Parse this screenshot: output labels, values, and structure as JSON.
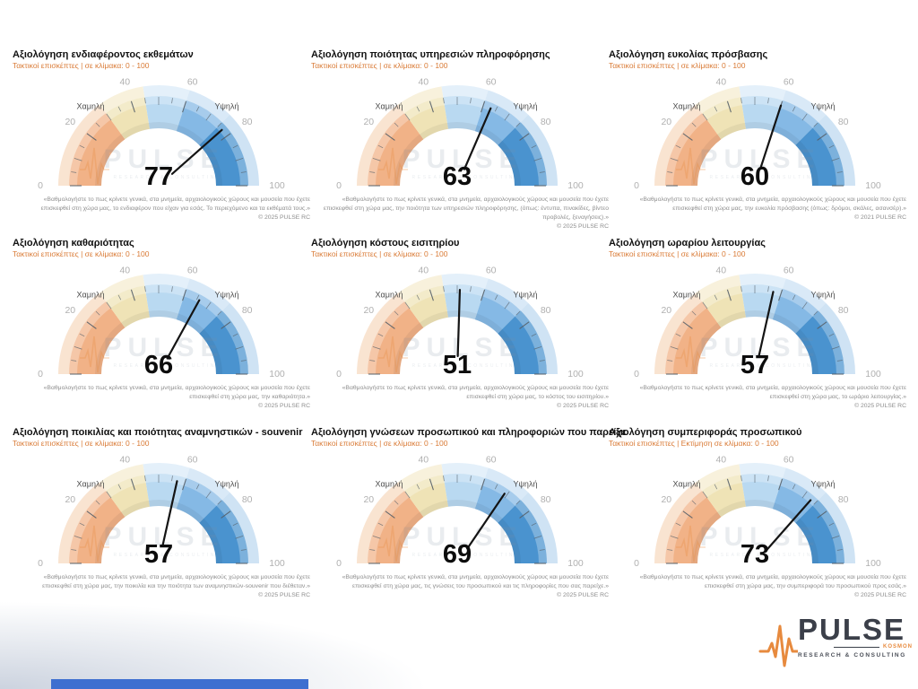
{
  "watermark": {
    "text": "PULSE",
    "subtext": "RESEARCH & CONSULTING"
  },
  "gauge_scale": {
    "min": 0,
    "max": 100,
    "ticks": [
      0,
      20,
      40,
      60,
      80,
      100
    ],
    "low_label": "Χαμηλή",
    "high_label": "Υψηλή",
    "bands": [
      {
        "from": 0,
        "to": 30,
        "color": "#f1b287",
        "halo": "#f9e4d1"
      },
      {
        "from": 30,
        "to": 45,
        "color": "#efe3b6",
        "halo": "#f8f1dc"
      },
      {
        "from": 45,
        "to": 60,
        "color": "#b9d9f1",
        "halo": "#e4f0fa"
      },
      {
        "from": 60,
        "to": 75,
        "color": "#85b9e5",
        "halo": "#d9e9f7"
      },
      {
        "from": 75,
        "to": 100,
        "color": "#4a93cf",
        "halo": "#cfe3f4"
      }
    ]
  },
  "gauges": [
    {
      "title": "Αξιολόγηση ενδιαφέροντος εκθεμάτων",
      "subtitle": "Τακτικοί επισκέπτες  |  σε κλίμακα:  0 - 100",
      "value": 77,
      "footnote": "«Βαθμολογήστε το πως κρίνετε γενικά, στα μνημεία, αρχαιολογικούς χώρους και μουσεία που έχετε επισκεφθεί στη χώρα μας, το ενδιαφέρον που είχαν για εσάς. Το περιεχόμενο και τα εκθέματά τους.»",
      "copyright": "©  2025  PULSE RC"
    },
    {
      "title": "Αξιολόγηση ποιότητας υπηρεσιών πληροφόρησης",
      "subtitle": "Τακτικοί επισκέπτες  |  σε κλίμακα:  0 - 100",
      "value": 63,
      "footnote": "«Βαθμολογήστε το πως κρίνετε γενικά, στα μνημεία, αρχαιολογικούς χώρους και μουσεία που έχετε επισκεφθεί στη χώρα μας, την ποιότητα των υπηρεσιών πληροφόρησης, (όπως: έντυπα, πινακίδες, βίντεο προβολές, ξεναγήσεις).»",
      "copyright": "©  2025  PULSE RC"
    },
    {
      "title": "Αξιολόγηση ευκολίας πρόσβασης",
      "subtitle": "Τακτικοί επισκέπτες  |  σε κλίμακα:  0 - 100",
      "value": 60,
      "footnote": "«Βαθμολογήστε το πως κρίνετε γενικά, στα μνημεία, αρχαιολογικούς χώρους και μουσεία που έχετε επισκεφθεί στη χώρα μας, την ευκολία πρόσβασης (όπως: δρόμοι, σκάλες, ασανσέρ).»",
      "copyright": "©  2021  PULSE RC"
    },
    {
      "title": "Αξιολόγηση καθαριότητας",
      "subtitle": "Τακτικοί επισκέπτες  |  σε κλίμακα:  0 - 100",
      "value": 66,
      "footnote": "«Βαθμολογήστε το πως κρίνετε γενικά, στα μνημεία, αρχαιολογικούς χώρους και μουσεία που έχετε επισκεφθεί στη χώρα μας, την καθαριότητα.»",
      "copyright": "©  2025  PULSE RC"
    },
    {
      "title": "Αξιολόγηση κόστους εισιτηρίου",
      "subtitle": "Τακτικοί επισκέπτες  |  σε κλίμακα:  0 - 100",
      "value": 51,
      "footnote": "«Βαθμολογήστε το πως κρίνετε γενικά, στα μνημεία, αρχαιολογικούς χώρους και μουσεία που έχετε επισκεφθεί στη χώρα μας, το κόστος του εισιτηρίου.»",
      "copyright": "©  2025  PULSE RC"
    },
    {
      "title": "Αξιολόγηση ωραρίου λειτουργίας",
      "subtitle": "Τακτικοί επισκέπτες  |  σε κλίμακα:  0 - 100",
      "value": 57,
      "footnote": "«Βαθμολογήστε το πως κρίνετε γενικά, στα μνημεία, αρχαιολογικούς χώρους και μουσεία που έχετε επισκεφθεί στη χώρα μας, το ωράριο λειτουργίας.»",
      "copyright": "©  2025  PULSE RC"
    },
    {
      "title": "Αξιολόγηση ποικιλίας και ποιότητας αναμνηστικών - souvenir",
      "subtitle": "Τακτικοί επισκέπτες  |  σε κλίμακα:  0 - 100",
      "value": 57,
      "footnote": "«Βαθμολογήστε το πως κρίνετε γενικά, στα μνημεία, αρχαιολογικούς χώρους και μουσεία που έχετε επισκεφθεί στη χώρα μας, την ποικιλία και την ποιότητα των αναμνηστικών-souvenir που διέθεταν.»",
      "copyright": "©  2025  PULSE RC"
    },
    {
      "title": "Αξιολόγηση γνώσεων προσωπικού και πληροφοριών που παρείχε",
      "subtitle": "Τακτικοί επισκέπτες  |  σε κλίμακα:  0 - 100",
      "value": 69,
      "footnote": "«Βαθμολογήστε το πως κρίνετε γενικά, στα μνημεία, αρχαιολογικούς χώρους και μουσεία που έχετε επισκεφθεί στη χώρα μας, τις γνώσεις του προσωπικού και τις πληροφορίες που σας παρείχε.»",
      "copyright": "©  2025  PULSE RC"
    },
    {
      "title": "Αξιολόγηση συμπεριφοράς προσωπικού",
      "subtitle": "Τακτικοί επισκέπτες  |  Εκτίμηση σε κλίμακα:  0 - 100",
      "value": 73,
      "footnote": "«Βαθμολογήστε το πως κρίνετε γενικά, στα μνημεία, αρχαιολογικούς χώρους και μουσεία που έχετε επισκεφθεί στη χώρα μας, την συμπεριφορά του προσωπικού προς εσάς.»",
      "copyright": "©  2025  PULSE RC"
    }
  ],
  "chart_data": {
    "type": "gauge",
    "range": [
      0,
      100
    ],
    "ticks": [
      0,
      20,
      40,
      60,
      80,
      100
    ],
    "low_label": "Χαμηλή",
    "high_label": "Υψηλή",
    "bands": [
      {
        "from": 0,
        "to": 30,
        "color": "#f1b287"
      },
      {
        "from": 30,
        "to": 45,
        "color": "#efe3b6"
      },
      {
        "from": 45,
        "to": 60,
        "color": "#b9d9f1"
      },
      {
        "from": 60,
        "to": 75,
        "color": "#85b9e5"
      },
      {
        "from": 75,
        "to": 100,
        "color": "#4a93cf"
      }
    ],
    "gauges": [
      {
        "title": "Αξιολόγηση ενδιαφέροντος εκθεμάτων",
        "value": 77
      },
      {
        "title": "Αξιολόγηση ποιότητας υπηρεσιών πληροφόρησης",
        "value": 63
      },
      {
        "title": "Αξιολόγηση ευκολίας πρόσβασης",
        "value": 60
      },
      {
        "title": "Αξιολόγηση καθαριότητας",
        "value": 66
      },
      {
        "title": "Αξιολόγηση κόστους εισιτηρίου",
        "value": 51
      },
      {
        "title": "Αξιολόγηση ωραρίου λειτουργίας",
        "value": 57
      },
      {
        "title": "Αξιολόγηση ποικιλίας και ποιότητας αναμνηστικών - souvenir",
        "value": 57
      },
      {
        "title": "Αξιολόγηση γνώσεων προσωπικού και πληροφοριών που παρείχε",
        "value": 69
      },
      {
        "title": "Αξιολόγηση συμπεριφοράς προσωπικού",
        "value": 73
      }
    ]
  },
  "footer_logo": {
    "name": "PULSE",
    "sub": "KOSMON",
    "tagline": "RESEARCH & CONSULTING"
  },
  "colors": {
    "accent_orange": "#e78a3e",
    "title_text": "#111111",
    "subtitle_text": "#d97a35",
    "tick_label": "#b0b0b0",
    "scale_text": "#4d4d4d",
    "footnote_text": "#8d8d8d",
    "value_text": "#0c0c0c",
    "needle": "#141414",
    "watermark_gray": "#7d8fa0",
    "logo_text": "#3b3f49",
    "bottom_bar": "#3e6fd0",
    "bg_vignette": "#ccd3df"
  }
}
